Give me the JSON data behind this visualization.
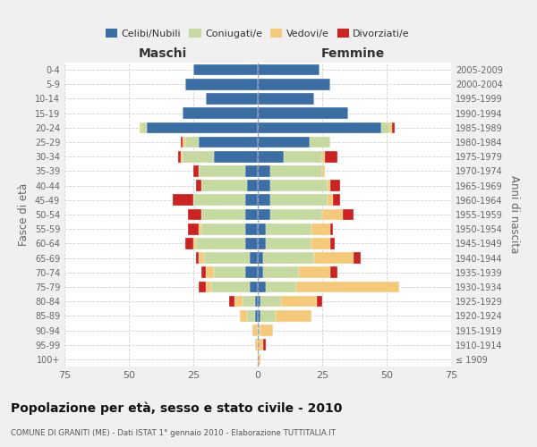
{
  "age_groups": [
    "100+",
    "95-99",
    "90-94",
    "85-89",
    "80-84",
    "75-79",
    "70-74",
    "65-69",
    "60-64",
    "55-59",
    "50-54",
    "45-49",
    "40-44",
    "35-39",
    "30-34",
    "25-29",
    "20-24",
    "15-19",
    "10-14",
    "5-9",
    "0-4"
  ],
  "birth_years": [
    "≤ 1909",
    "1910-1914",
    "1915-1919",
    "1920-1924",
    "1925-1929",
    "1930-1934",
    "1935-1939",
    "1940-1944",
    "1945-1949",
    "1950-1954",
    "1955-1959",
    "1960-1964",
    "1965-1969",
    "1970-1974",
    "1975-1979",
    "1980-1984",
    "1985-1989",
    "1990-1994",
    "1995-1999",
    "2000-2004",
    "2005-2009"
  ],
  "colors": {
    "celibi": "#3a6ea5",
    "coniugati": "#c5d9a0",
    "vedovi": "#f5c97a",
    "divorziati": "#cc2222"
  },
  "maschi": {
    "celibi": [
      0,
      0,
      0,
      1,
      1,
      3,
      5,
      3,
      5,
      5,
      5,
      5,
      4,
      5,
      17,
      23,
      43,
      29,
      20,
      28,
      25
    ],
    "coniugati": [
      0,
      0,
      0,
      3,
      5,
      15,
      12,
      18,
      19,
      17,
      17,
      20,
      18,
      18,
      12,
      5,
      2,
      0,
      0,
      0,
      0
    ],
    "vedovi": [
      0,
      1,
      2,
      3,
      3,
      2,
      3,
      2,
      1,
      1,
      0,
      0,
      0,
      0,
      1,
      1,
      1,
      0,
      0,
      0,
      0
    ],
    "divorziati": [
      0,
      0,
      0,
      0,
      2,
      3,
      2,
      1,
      3,
      4,
      5,
      8,
      2,
      2,
      1,
      1,
      0,
      0,
      0,
      0,
      0
    ]
  },
  "femmine": {
    "celibi": [
      0,
      0,
      0,
      1,
      1,
      3,
      2,
      2,
      3,
      3,
      5,
      5,
      5,
      5,
      10,
      20,
      48,
      35,
      22,
      28,
      24
    ],
    "coniugati": [
      0,
      0,
      1,
      6,
      8,
      12,
      14,
      20,
      18,
      18,
      20,
      22,
      22,
      20,
      15,
      8,
      3,
      0,
      0,
      0,
      0
    ],
    "vedovi": [
      1,
      2,
      5,
      14,
      14,
      40,
      12,
      15,
      7,
      7,
      8,
      2,
      1,
      1,
      1,
      0,
      1,
      0,
      0,
      0,
      0
    ],
    "divorziati": [
      0,
      1,
      0,
      0,
      2,
      0,
      3,
      3,
      2,
      1,
      4,
      3,
      4,
      0,
      5,
      0,
      1,
      0,
      0,
      0,
      0
    ]
  },
  "xlim": 75,
  "xlabel_left": "Maschi",
  "xlabel_right": "Femmine",
  "ylabel_left": "Fasce di età",
  "ylabel_right": "Anni di nascita",
  "title": "Popolazione per età, sesso e stato civile - 2010",
  "subtitle": "COMUNE DI GRANITI (ME) - Dati ISTAT 1° gennaio 2010 - Elaborazione TUTTITALIA.IT",
  "legend_labels": [
    "Celibi/Nubili",
    "Coniugati/e",
    "Vedovi/e",
    "Divorziati/e"
  ],
  "bg_color": "#f0f0f0",
  "plot_bg": "#ffffff",
  "grid_color": "#cccccc"
}
